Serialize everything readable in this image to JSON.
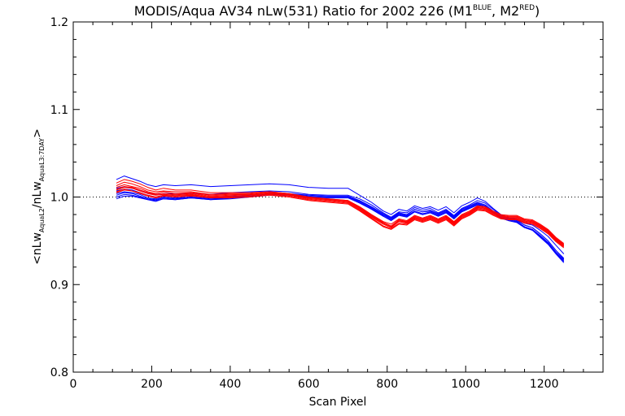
{
  "chart_data": {
    "type": "line",
    "title": "MODIS/Aqua AV34 nLw(531) Ratio for 2002 226 (M1",
    "title_sup1": "BLUE",
    "title_mid": ", M2",
    "title_sup2": "RED",
    "title_end": ")",
    "xlabel": "Scan Pixel",
    "ylabel_parts": {
      "open": "<nLw",
      "sub1": "AquaL2",
      "slash": "/nLw",
      "sub2": "AquaL3:7DAY",
      "close": ">"
    },
    "xlim": [
      0,
      1350
    ],
    "ylim": [
      0.8,
      1.2
    ],
    "xticks": [
      0,
      200,
      400,
      600,
      800,
      1000,
      1200
    ],
    "yticks": [
      0.8,
      0.9,
      1.0,
      1.1,
      1.2
    ],
    "xtick_labels": [
      "0",
      "200",
      "400",
      "600",
      "800",
      "1000",
      "1200"
    ],
    "ytick_labels": [
      "0.8",
      "0.9",
      "1.0",
      "1.1",
      "1.2"
    ],
    "reference_line": {
      "y": 1.0,
      "style": "dotted"
    },
    "grid": false,
    "series_colors": {
      "M1": "#0000ff",
      "M2": "#ff0000"
    },
    "base_x": [
      110,
      130,
      150,
      170,
      190,
      210,
      230,
      260,
      300,
      350,
      400,
      450,
      500,
      550,
      600,
      650,
      700,
      730,
      760,
      790,
      810,
      830,
      850,
      870,
      890,
      910,
      930,
      950,
      970,
      990,
      1010,
      1030,
      1050,
      1070,
      1090,
      1110,
      1130,
      1150,
      1170,
      1190,
      1210,
      1230,
      1250
    ],
    "base_y": [
      1.006,
      1.008,
      1.007,
      1.005,
      1.002,
      1.0,
      1.002,
      1.001,
      1.002,
      1.0,
      1.001,
      1.002,
      1.004,
      1.003,
      1.0,
      0.999,
      0.998,
      0.992,
      0.984,
      0.976,
      0.972,
      0.978,
      0.976,
      0.982,
      0.979,
      0.981,
      0.977,
      0.981,
      0.974,
      0.982,
      0.986,
      0.991,
      0.989,
      0.983,
      0.978,
      0.976,
      0.975,
      0.97,
      0.968,
      0.962,
      0.955,
      0.945,
      0.937
    ],
    "series": [
      {
        "group": "M1",
        "offsets": [
          0.014,
          0.016,
          0.014,
          0.013,
          0.012,
          0.012,
          0.012,
          0.012,
          0.012,
          0.012,
          0.012,
          0.012,
          0.011,
          0.011,
          0.011,
          0.011,
          0.012,
          0.01,
          0.01,
          0.008,
          0.008,
          0.008,
          0.008,
          0.008,
          0.008,
          0.008,
          0.008,
          0.008,
          0.008,
          0.008,
          0.008,
          0.008,
          0.006,
          0.004,
          0.002,
          0.0,
          0.0,
          0.0,
          0.0,
          0.0,
          0.0,
          0.0,
          -0.002
        ]
      },
      {
        "group": "M1",
        "offsets": [
          0.004,
          0.004,
          0.003,
          0.003,
          0.002,
          0.003,
          0.002,
          0.003,
          0.002,
          0.003,
          0.004,
          0.004,
          0.003,
          0.003,
          0.003,
          0.003,
          0.004,
          0.006,
          0.007,
          0.006,
          0.005,
          0.005,
          0.006,
          0.006,
          0.006,
          0.006,
          0.005,
          0.005,
          0.005,
          0.005,
          0.005,
          0.005,
          0.004,
          0.003,
          0.001,
          0.0,
          -0.001,
          -0.002,
          -0.003,
          -0.004,
          -0.005,
          -0.006,
          -0.007
        ]
      },
      {
        "group": "M1",
        "offsets": [
          -0.002,
          -0.002,
          -0.002,
          -0.002,
          -0.003,
          -0.002,
          -0.002,
          -0.002,
          -0.002,
          -0.001,
          -0.001,
          0.0,
          0.0,
          0.001,
          0.002,
          0.002,
          0.003,
          0.004,
          0.004,
          0.004,
          0.004,
          0.003,
          0.003,
          0.004,
          0.004,
          0.003,
          0.003,
          0.003,
          0.003,
          0.003,
          0.003,
          0.002,
          0.001,
          0.0,
          -0.001,
          -0.002,
          -0.003,
          -0.004,
          -0.005,
          -0.006,
          -0.007,
          -0.008,
          -0.01
        ]
      },
      {
        "group": "M1",
        "offsets": [
          -0.006,
          -0.005,
          -0.005,
          -0.005,
          -0.005,
          -0.004,
          -0.004,
          -0.004,
          -0.003,
          -0.003,
          -0.002,
          -0.002,
          -0.001,
          -0.001,
          0.0,
          0.001,
          0.002,
          0.003,
          0.003,
          0.003,
          0.003,
          0.003,
          0.002,
          0.002,
          0.002,
          0.002,
          0.002,
          0.002,
          0.002,
          0.002,
          0.002,
          0.001,
          0.0,
          -0.001,
          -0.002,
          -0.003,
          -0.004,
          -0.005,
          -0.006,
          -0.007,
          -0.008,
          -0.009,
          -0.011
        ]
      },
      {
        "group": "M1",
        "offsets": [
          -0.004,
          -0.003,
          -0.003,
          -0.004,
          -0.004,
          -0.003,
          -0.003,
          -0.003,
          -0.002,
          -0.002,
          -0.002,
          -0.001,
          -0.001,
          0.0,
          0.0,
          0.001,
          0.002,
          0.002,
          0.002,
          0.002,
          0.002,
          0.002,
          0.002,
          0.001,
          0.001,
          0.001,
          0.001,
          0.001,
          0.001,
          0.001,
          0.001,
          0.0,
          0.0,
          -0.001,
          -0.001,
          -0.002,
          -0.003,
          -0.004,
          -0.005,
          -0.006,
          -0.007,
          -0.008,
          -0.009
        ]
      },
      {
        "group": "M1",
        "offsets": [
          0.001,
          0.001,
          0.001,
          0.0,
          0.0,
          0.0,
          0.0,
          0.0,
          0.0,
          0.0,
          0.0,
          0.0,
          0.001,
          0.001,
          0.001,
          0.001,
          0.002,
          0.004,
          0.005,
          0.005,
          0.004,
          0.004,
          0.004,
          0.004,
          0.004,
          0.004,
          0.004,
          0.004,
          0.004,
          0.004,
          0.004,
          0.003,
          0.002,
          0.001,
          0.0,
          -0.001,
          -0.002,
          -0.002,
          -0.003,
          -0.004,
          -0.005,
          -0.006,
          -0.008
        ]
      },
      {
        "group": "M1",
        "offsets": [
          -0.008,
          -0.007,
          -0.006,
          -0.006,
          -0.005,
          -0.005,
          -0.004,
          -0.004,
          -0.003,
          -0.003,
          -0.003,
          -0.002,
          -0.002,
          -0.001,
          -0.001,
          0.0,
          0.001,
          0.001,
          0.002,
          0.002,
          0.001,
          0.001,
          0.001,
          0.001,
          0.001,
          0.001,
          0.001,
          0.001,
          0.001,
          0.001,
          0.001,
          0.0,
          0.0,
          -0.001,
          -0.002,
          -0.003,
          -0.004,
          -0.005,
          -0.006,
          -0.008,
          -0.009,
          -0.01,
          -0.012
        ]
      },
      {
        "group": "M2",
        "offsets": [
          0.01,
          0.012,
          0.011,
          0.01,
          0.009,
          0.008,
          0.008,
          0.007,
          0.006,
          0.005,
          0.004,
          0.003,
          0.002,
          0.001,
          0.0,
          -0.001,
          -0.002,
          -0.003,
          -0.004,
          -0.004,
          -0.003,
          -0.003,
          -0.003,
          -0.003,
          -0.003,
          -0.002,
          -0.002,
          -0.002,
          -0.002,
          -0.002,
          -0.002,
          -0.001,
          0.0,
          0.001,
          0.002,
          0.003,
          0.004,
          0.005,
          0.006,
          0.007,
          0.008,
          0.009,
          0.01
        ]
      },
      {
        "group": "M2",
        "offsets": [
          0.005,
          0.006,
          0.005,
          0.005,
          0.004,
          0.004,
          0.004,
          0.003,
          0.003,
          0.002,
          0.002,
          0.001,
          0.001,
          0.0,
          -0.001,
          -0.002,
          -0.003,
          -0.005,
          -0.006,
          -0.006,
          -0.006,
          -0.005,
          -0.005,
          -0.005,
          -0.005,
          -0.004,
          -0.004,
          -0.004,
          -0.004,
          -0.004,
          -0.004,
          -0.003,
          -0.002,
          -0.001,
          0.0,
          0.001,
          0.002,
          0.003,
          0.004,
          0.005,
          0.006,
          0.007,
          0.008
        ]
      },
      {
        "group": "M2",
        "offsets": [
          0.002,
          0.003,
          0.003,
          0.002,
          0.002,
          0.002,
          0.001,
          0.001,
          0.001,
          0.0,
          0.0,
          0.0,
          0.0,
          -0.001,
          -0.002,
          -0.003,
          -0.004,
          -0.006,
          -0.007,
          -0.007,
          -0.007,
          -0.006,
          -0.006,
          -0.006,
          -0.006,
          -0.005,
          -0.005,
          -0.005,
          -0.005,
          -0.005,
          -0.005,
          -0.004,
          -0.003,
          -0.002,
          -0.001,
          0.0,
          0.001,
          0.002,
          0.003,
          0.004,
          0.005,
          0.006,
          0.007
        ]
      },
      {
        "group": "M2",
        "offsets": [
          0.0,
          0.001,
          0.0,
          0.0,
          0.0,
          0.0,
          0.0,
          0.0,
          0.0,
          0.0,
          -0.001,
          -0.001,
          -0.001,
          -0.002,
          -0.003,
          -0.004,
          -0.005,
          -0.007,
          -0.008,
          -0.009,
          -0.008,
          -0.008,
          -0.007,
          -0.007,
          -0.007,
          -0.006,
          -0.006,
          -0.006,
          -0.006,
          -0.006,
          -0.006,
          -0.005,
          -0.004,
          -0.003,
          -0.002,
          -0.001,
          0.0,
          0.001,
          0.002,
          0.003,
          0.004,
          0.005,
          0.006
        ]
      },
      {
        "group": "M2",
        "offsets": [
          0.007,
          0.009,
          0.008,
          0.007,
          0.006,
          0.006,
          0.005,
          0.005,
          0.004,
          0.003,
          0.003,
          0.002,
          0.002,
          0.001,
          0.0,
          -0.001,
          -0.002,
          -0.004,
          -0.005,
          -0.005,
          -0.005,
          -0.004,
          -0.004,
          -0.004,
          -0.004,
          -0.003,
          -0.003,
          -0.003,
          -0.003,
          -0.003,
          -0.003,
          -0.002,
          -0.001,
          0.0,
          0.001,
          0.002,
          0.003,
          0.004,
          0.005,
          0.006,
          0.007,
          0.008,
          0.009
        ]
      },
      {
        "group": "M2",
        "offsets": [
          0.003,
          0.004,
          0.004,
          0.003,
          0.003,
          0.003,
          0.002,
          0.002,
          0.002,
          0.001,
          0.001,
          0.001,
          0.0,
          0.0,
          -0.001,
          -0.002,
          -0.003,
          -0.005,
          -0.006,
          -0.006,
          -0.006,
          -0.005,
          -0.005,
          -0.005,
          -0.005,
          -0.004,
          -0.004,
          -0.004,
          -0.004,
          -0.004,
          -0.004,
          -0.003,
          -0.002,
          -0.001,
          0.0,
          0.001,
          0.002,
          0.003,
          0.004,
          0.005,
          0.006,
          0.007,
          0.008
        ]
      },
      {
        "group": "M2",
        "offsets": [
          -0.001,
          0.0,
          0.0,
          -0.001,
          -0.001,
          -0.001,
          -0.001,
          -0.001,
          -0.001,
          -0.001,
          -0.002,
          -0.002,
          -0.002,
          -0.003,
          -0.004,
          -0.005,
          -0.006,
          -0.008,
          -0.009,
          -0.01,
          -0.009,
          -0.009,
          -0.008,
          -0.008,
          -0.008,
          -0.007,
          -0.007,
          -0.007,
          -0.007,
          -0.007,
          -0.007,
          -0.006,
          -0.005,
          -0.004,
          -0.003,
          -0.002,
          -0.001,
          0.0,
          0.001,
          0.002,
          0.003,
          0.004,
          0.005
        ]
      }
    ]
  }
}
